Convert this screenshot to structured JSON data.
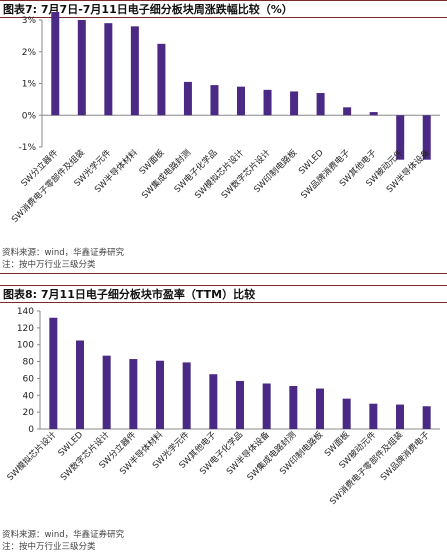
{
  "charts": [
    {
      "label": "图表7:",
      "title": "7月7日-7月11日电子细分板块周涨跌幅比较（%）",
      "source": "资料来源：wind，华鑫证券研究",
      "note": "注：按中万行业三级分类",
      "chart_data": {
        "type": "bar",
        "categories": [
          "SW分立器件",
          "SW消费电子零部件及组装",
          "SW光学元件",
          "SW半导体材料",
          "SW面板",
          "SW集成电路封测",
          "SW电子化学品",
          "SW模拟芯片设计",
          "SW数字芯片设计",
          "SW印制电路板",
          "SWLED",
          "SW品牌消费电子",
          "SW其他电子",
          "SW被动元件",
          "SW半导体设备"
        ],
        "values": [
          3.45,
          3.0,
          2.9,
          2.8,
          2.25,
          1.05,
          0.95,
          0.9,
          0.8,
          0.75,
          0.7,
          0.25,
          0.1,
          -1.4,
          -1.4
        ],
        "ylim": [
          -1,
          3
        ],
        "yticks": [
          -1,
          0,
          1,
          2,
          3
        ],
        "ytick_labels": [
          "-1%",
          "0%",
          "1%",
          "2%",
          "3%"
        ],
        "bar_color": "#4b2a86"
      }
    },
    {
      "label": "图表8:",
      "title": "7月11日电子细分板块市盈率（TTM）比较",
      "source": "资料来源：wind，华鑫证券研究",
      "note": "注：按中万行业三级分类",
      "chart_data": {
        "type": "bar",
        "categories": [
          "SW模拟芯片设计",
          "SWLED",
          "SW数字芯片设计",
          "SW分立器件",
          "SW半导体材料",
          "SW光学元件",
          "SW其他电子",
          "SW电子化学品",
          "SW半导体设备",
          "SW集成电路封测",
          "SW印制电路板",
          "SW面板",
          "SW被动元件",
          "SW消费电子零部件及组装",
          "SW品牌消费电子"
        ],
        "values": [
          132,
          105,
          87,
          83,
          81,
          79,
          65,
          57,
          54,
          51,
          48,
          36,
          30,
          29,
          27
        ],
        "ylim": [
          0,
          140
        ],
        "yticks": [
          0,
          20,
          40,
          60,
          80,
          100,
          120,
          140
        ],
        "ytick_labels": [
          "0",
          "20",
          "40",
          "60",
          "80",
          "100",
          "120",
          "140"
        ],
        "bar_color": "#4b2a86"
      }
    }
  ]
}
